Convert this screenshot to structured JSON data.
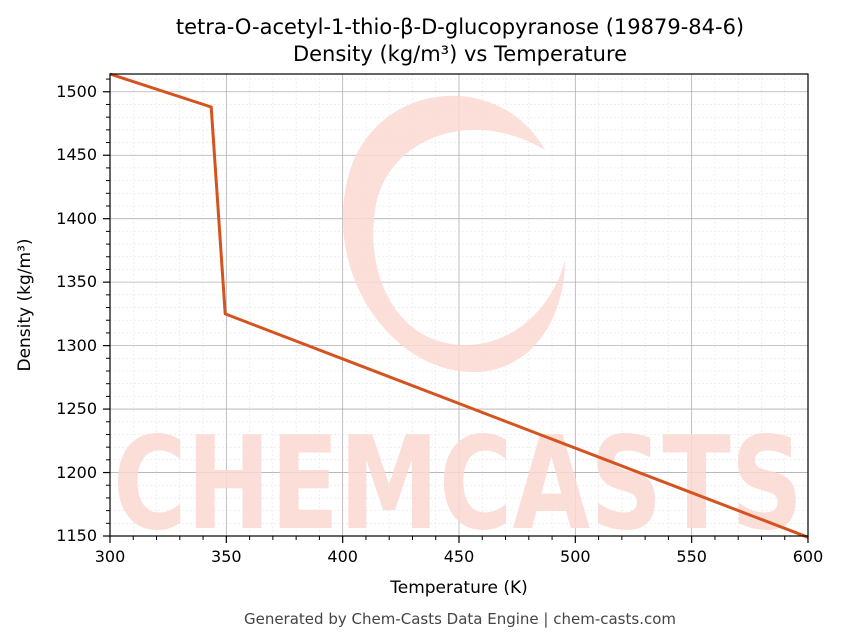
{
  "chart_data": {
    "type": "line",
    "title_line1": "tetra-O-acetyl-1-thio-β-D-glucopyranose (19879-84-6)",
    "title_line2": "Density (kg/m³) vs Temperature",
    "xlabel": "Temperature (K)",
    "ylabel": "Density (kg/m³)",
    "xlim": [
      300,
      600
    ],
    "ylim": [
      1150,
      1514
    ],
    "x_ticks": [
      "300",
      "350",
      "400",
      "450",
      "500",
      "550",
      "600"
    ],
    "y_ticks": [
      "1150",
      "1200",
      "1250",
      "1300",
      "1350",
      "1400",
      "1450",
      "1500"
    ],
    "grid": true,
    "series": [
      {
        "color": "#d4531f",
        "x": [
          300,
          343.5,
          349.5,
          600
        ],
        "y": [
          1514,
          1488,
          1325,
          1149
        ]
      }
    ]
  },
  "watermark": "CHEMCASTS",
  "footer": "Generated by Chem-Casts Data Engine | chem-casts.com"
}
